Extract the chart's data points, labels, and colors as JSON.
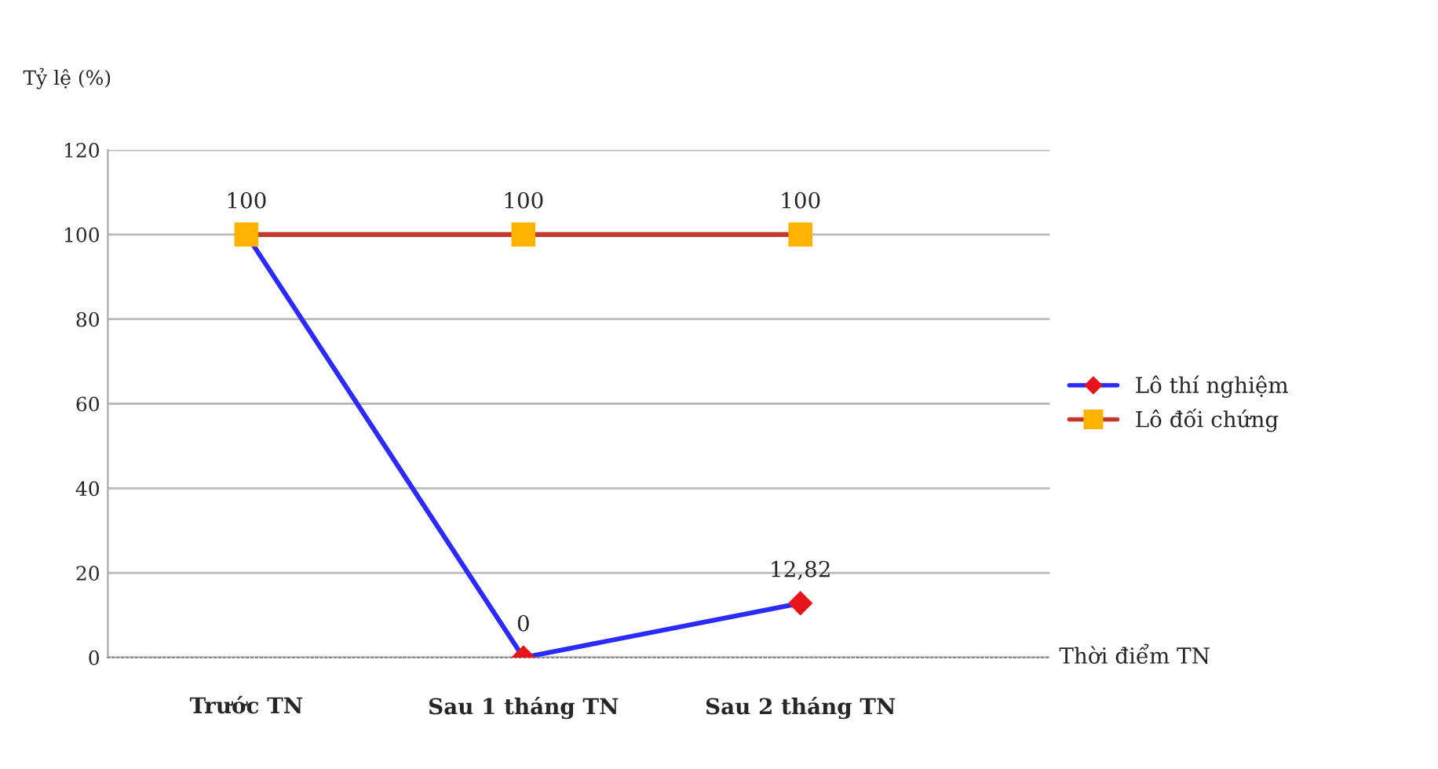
{
  "chart_data": {
    "type": "line",
    "ylabel": "Tỷ lệ (%)",
    "xlabel": "Thời điểm TN",
    "categories": [
      "Trước TN",
      "Sau 1 tháng TN",
      "Sau 2 tháng TN"
    ],
    "series": [
      {
        "name": "Lô thí nghiệm",
        "color": "#2b2bff",
        "colors": [
          "#e8141c",
          "#e8141c",
          "#e8141c"
        ],
        "marker": "diamond",
        "values": [
          100,
          0,
          12.82
        ],
        "value_labels": [
          null,
          "0",
          "12,82"
        ]
      },
      {
        "name": "Lô đối chứng",
        "color": "#c0392b",
        "colors": [
          "#ffb300",
          "#ffb300",
          "#ffb300"
        ],
        "marker": "square",
        "values": [
          100,
          100,
          100
        ],
        "value_labels": [
          "100",
          "100",
          "100"
        ]
      }
    ],
    "ylim": [
      0,
      120
    ],
    "yticks": [
      0,
      20,
      40,
      60,
      80,
      100,
      120
    ],
    "grid": "y",
    "legend": "right"
  }
}
